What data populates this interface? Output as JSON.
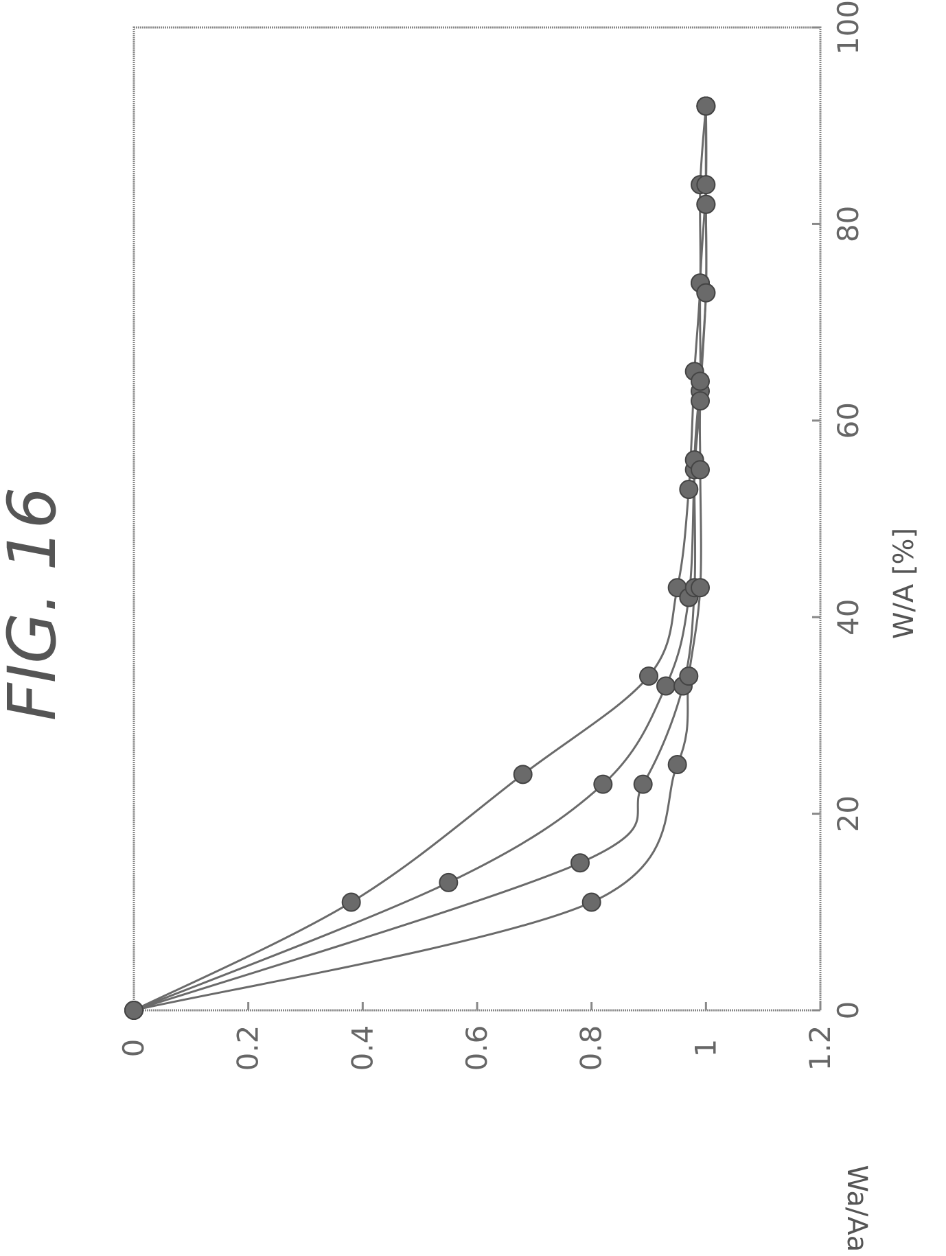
{
  "figure_title": "FIG. 16",
  "chart_data": {
    "type": "line",
    "title": "FIG. 16",
    "xlabel": "W/A [%]",
    "ylabel": "Wa/Aa [-]",
    "xlim": [
      0,
      100
    ],
    "ylim": [
      0,
      1.2
    ],
    "x_ticks": [
      "0",
      "20",
      "40",
      "60",
      "80",
      "100"
    ],
    "y_ticks": [
      "0",
      "0.2",
      "0.4",
      "0.6",
      "0.8",
      "1",
      "1.2"
    ],
    "y_inverted": true,
    "orientation": "rotated-90-ccw",
    "grid": false,
    "legend": "none",
    "marker": "circle",
    "color": "#6a6a6a",
    "series": [
      {
        "points": [
          [
            0,
            0
          ],
          [
            11,
            0.38
          ],
          [
            24,
            0.68
          ],
          [
            34,
            0.9
          ],
          [
            43,
            0.95
          ],
          [
            53,
            0.97
          ],
          [
            65,
            0.98
          ],
          [
            74,
            0.99
          ],
          [
            84,
            0.99
          ],
          [
            92,
            1.0
          ]
        ]
      },
      {
        "points": [
          [
            0,
            0
          ],
          [
            13,
            0.55
          ],
          [
            23,
            0.82
          ],
          [
            33,
            0.93
          ],
          [
            42,
            0.97
          ],
          [
            55,
            0.98
          ],
          [
            63,
            0.99
          ],
          [
            74,
            0.99
          ],
          [
            84,
            1.0
          ],
          [
            92,
            1.0
          ]
        ]
      },
      {
        "points": [
          [
            0,
            0
          ],
          [
            15,
            0.78
          ],
          [
            23,
            0.89
          ],
          [
            33,
            0.96
          ],
          [
            43,
            0.98
          ],
          [
            56,
            0.98
          ],
          [
            64,
            0.99
          ],
          [
            73,
            1.0
          ],
          [
            82,
            1.0
          ],
          [
            92,
            1.0
          ]
        ]
      },
      {
        "points": [
          [
            0,
            0
          ],
          [
            11,
            0.8
          ],
          [
            25,
            0.95
          ],
          [
            34,
            0.97
          ],
          [
            43,
            0.99
          ],
          [
            55,
            0.99
          ],
          [
            62,
            0.99
          ],
          [
            73,
            1.0
          ],
          [
            82,
            1.0
          ],
          [
            92,
            1.0
          ]
        ]
      }
    ]
  }
}
